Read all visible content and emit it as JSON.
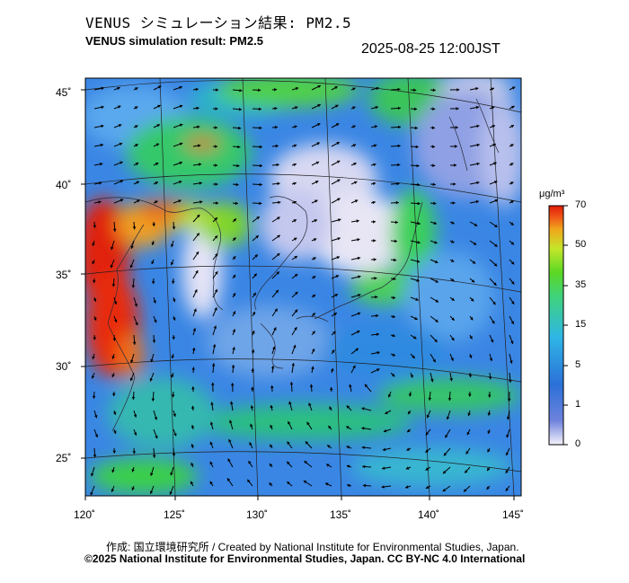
{
  "title_jp": "VENUS シミュレーション結果: PM2.5",
  "title_en": "VENUS simulation result: PM2.5",
  "timestamp": "2025-08-25 12:00JST",
  "lat_labels": [
    "45˚",
    "40˚",
    "35˚",
    "30˚",
    "25˚"
  ],
  "lon_labels": [
    "120˚",
    "125˚",
    "130˚",
    "135˚",
    "140˚",
    "145˚"
  ],
  "colorbar": {
    "unit": "μg/m³",
    "ticks": [
      "70",
      "50",
      "35",
      "15",
      "5",
      "1",
      "0"
    ],
    "colors": [
      "#e8e6f5",
      "#6f83dd",
      "#2b70d8",
      "#2fb6e6",
      "#3fd37c",
      "#35d624",
      "#b8e628",
      "#f0ac1c",
      "#f06018",
      "#e01a08"
    ]
  },
  "credit_line1": "作成: 国立環境研究所 / Created by National Institute for Environmental Studies, Japan.",
  "credit_line2": "©2025 National Institute for Environmental Studies, Japan. CC BY-NC 4.0 International"
}
